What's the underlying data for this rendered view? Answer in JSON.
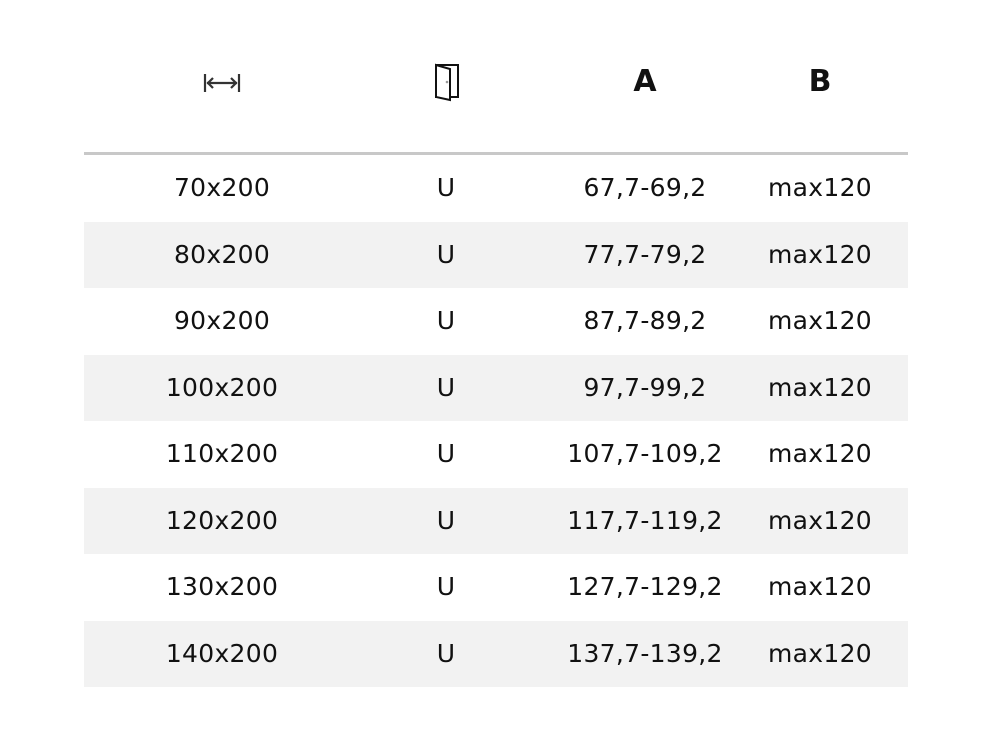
{
  "header": {
    "width_icon": "width-arrows-icon",
    "door_icon": "door-icon",
    "col_a": "A",
    "col_b": "B"
  },
  "rows": [
    [
      "70x200",
      "U",
      "67,7-69,2",
      "max120"
    ],
    [
      "80x200",
      "U",
      "77,7-79,2",
      "max120"
    ],
    [
      "90x200",
      "U",
      "87,7-89,2",
      "max120"
    ],
    [
      "100x200",
      "U",
      "97,7-99,2",
      "max120"
    ],
    [
      "110x200",
      "U",
      "107,7-109,2",
      "max120"
    ],
    [
      "120x200",
      "U",
      "117,7-119,2",
      "max120"
    ],
    [
      "130x200",
      "U",
      "127,7-129,2",
      "max120"
    ],
    [
      "140x200",
      "U",
      "137,7-139,2",
      "max120"
    ]
  ]
}
